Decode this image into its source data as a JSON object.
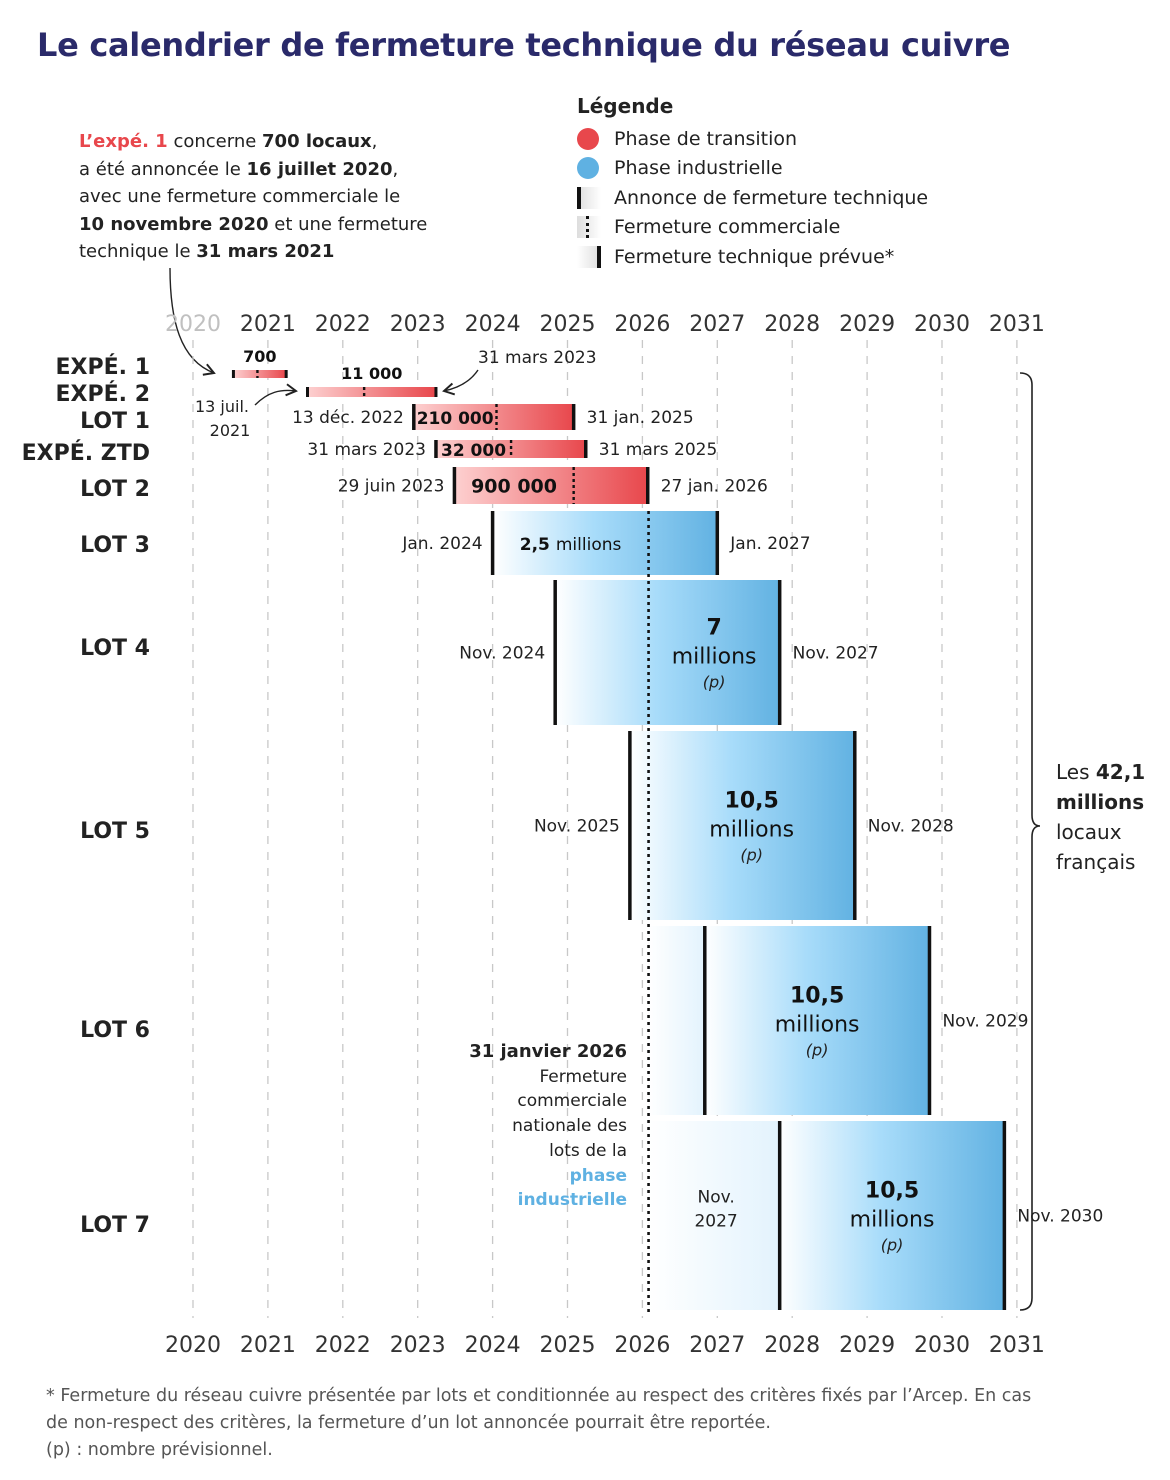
{
  "title": "Le calendrier de fermeture technique du réseau cuivre",
  "annotation": [
    {
      "t": "L’expé. 1",
      "s": "red"
    },
    {
      "t": " concerne ",
      "s": ""
    },
    {
      "t": "700 locaux",
      "s": "b"
    },
    {
      "t": ",\na été annoncée le ",
      "s": ""
    },
    {
      "t": "16 juillet 2020",
      "s": "b"
    },
    {
      "t": ",\navec une fermeture commerciale le\n",
      "s": ""
    },
    {
      "t": "10 novembre 2020",
      "s": "b"
    },
    {
      "t": " et une fermeture\ntechnique le ",
      "s": ""
    },
    {
      "t": "31 mars 2021",
      "s": "b"
    }
  ],
  "legend": {
    "title": "Légende",
    "items": [
      {
        "label": "Phase de transition",
        "kind": "dot",
        "color": "#e8474c"
      },
      {
        "label": "Phase industrielle",
        "kind": "dot",
        "color": "#5fb1e2"
      },
      {
        "label": "Annonce de fermeture technique",
        "kind": "start-bar"
      },
      {
        "label": "Fermeture commerciale",
        "kind": "dotted"
      },
      {
        "label": "Fermeture technique prévue*",
        "kind": "end-bar"
      }
    ]
  },
  "colors": {
    "transition_light": "#fdd0d0",
    "transition": "#e8474c",
    "industrial_light": "#ffffff",
    "industrial": "#62b2e2",
    "mid": "#a8dcfa"
  },
  "chart_data": {
    "type": "gantt",
    "x_ticks": [
      "2020",
      "2021",
      "2022",
      "2023",
      "2024",
      "2025",
      "2026",
      "2027",
      "2028",
      "2029",
      "2030",
      "2031"
    ],
    "xlim": [
      2020,
      2031
    ],
    "grid": "vertical dashed",
    "rows": [
      {
        "id": "e1",
        "label": "EXPÉ. 1",
        "phase": "transition",
        "start": "2020-07-16",
        "commercial": "2020-11-10",
        "end": "2021-03-31",
        "value": "700",
        "unit": "",
        "note": "",
        "start_label": "",
        "end_label": ""
      },
      {
        "id": "e2",
        "label": "EXPÉ. 2",
        "phase": "transition",
        "start": "2021-07-13",
        "commercial": "2022-04-15",
        "end": "2023-03-31",
        "value": "11 000",
        "unit": "",
        "note": "",
        "start_label": "13 juil. 2021",
        "end_label": "31 mars 2023"
      },
      {
        "id": "l1",
        "label": "LOT 1",
        "phase": "transition",
        "start": "2022-12-13",
        "commercial": "2024-01-20",
        "end": "2025-01-31",
        "value": "210 000",
        "unit": "",
        "note": "",
        "start_label": "13 déc. 2022",
        "end_label": "31 jan. 2025"
      },
      {
        "id": "ztd",
        "label": "EXPÉ. ZTD",
        "phase": "transition",
        "start": "2023-03-31",
        "commercial": "2024-03-31",
        "end": "2025-03-31",
        "value": "32 000",
        "unit": "",
        "note": "",
        "start_label": "31 mars 2023",
        "end_label": "31 mars 2025"
      },
      {
        "id": "l2",
        "label": "LOT 2",
        "phase": "transition",
        "start": "2023-06-29",
        "commercial": "2025-01-31",
        "end": "2026-01-27",
        "value": "900 000",
        "unit": "",
        "note": "",
        "start_label": "29 juin 2023",
        "end_label": "27 jan. 2026"
      },
      {
        "id": "l3",
        "label": "LOT 3",
        "phase": "industrial",
        "start": "2024-01-01",
        "commercial": "2026-01-31",
        "end": "2027-01-01",
        "value": "2,5",
        "unit": "millions",
        "note": "",
        "start_label": "Jan. 2024",
        "end_label": "Jan. 2027"
      },
      {
        "id": "l4",
        "label": "LOT 4",
        "phase": "industrial",
        "start": "2024-11-01",
        "commercial": "2026-01-31",
        "end": "2027-11-01",
        "value": "7",
        "unit": "millions",
        "note": "(p)",
        "start_label": "Nov. 2024",
        "end_label": "Nov. 2027"
      },
      {
        "id": "l5",
        "label": "LOT 5",
        "phase": "industrial",
        "start": "2025-11-01",
        "commercial": "2026-01-31",
        "end": "2028-11-01",
        "value": "10,5",
        "unit": "millions",
        "note": "(p)",
        "start_label": "Nov. 2025",
        "end_label": "Nov. 2028"
      },
      {
        "id": "l6",
        "label": "LOT 6",
        "phase": "industrial",
        "start": "2026-11-01",
        "commercial": "2026-01-31",
        "end": "2029-11-01",
        "value": "10,5",
        "unit": "millions",
        "note": "(p)",
        "start_label": "",
        "end_label": "Nov. 2029"
      },
      {
        "id": "l7",
        "label": "LOT 7",
        "phase": "industrial",
        "start": "2027-11-01",
        "commercial": "2026-01-31",
        "end": "2030-11-01",
        "value": "10,5",
        "unit": "millions",
        "note": "(p)",
        "start_label": "Nov. 2027",
        "end_label": "Nov. 2030"
      }
    ],
    "commercial_national": {
      "date": "2026-01-31",
      "title": "31 janvier 2026",
      "lines": [
        "Fermeture",
        "commerciale",
        "nationale des",
        "lots de la"
      ],
      "highlight": [
        "phase",
        "industrielle"
      ]
    },
    "total": {
      "pre": "Les ",
      "value": "42,1",
      "lines": [
        "millions",
        "locaux",
        "français"
      ]
    }
  },
  "footnote": [
    "* Fermeture du réseau cuivre présentée par lots et conditionnée au respect des critères fixés par l’Arcep. En cas",
    "de non-respect des critères, la fermeture d’un lot annoncée pourrait être reportée.",
    "(p) : nombre prévisionnel."
  ]
}
